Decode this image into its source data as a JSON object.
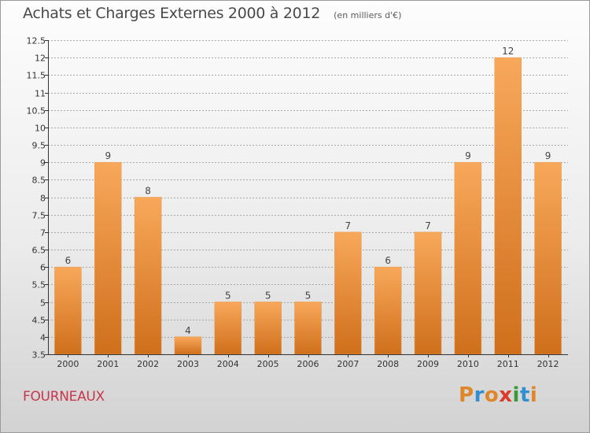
{
  "header": {
    "title": "Achats et Charges Externes 2000 à 2012",
    "unit": "(en milliers d'€)"
  },
  "footer": {
    "commune": "FOURNEAUX",
    "brand_letters": [
      "P",
      "r",
      "o",
      "x",
      "i",
      "t",
      "i"
    ],
    "brand_colors": [
      "#e0862a",
      "#2f8fd0",
      "#e0862a",
      "#d93a2a",
      "#3a9a3a",
      "#2f8fd0",
      "#e0862a"
    ]
  },
  "colors": {
    "bar_top": "#f8a85a",
    "bar_bottom": "#cf6f1c",
    "grid": "#a8a8a8",
    "axis": "#333333"
  },
  "chart_data": {
    "type": "bar",
    "categories": [
      "2000",
      "2001",
      "2002",
      "2003",
      "2004",
      "2005",
      "2006",
      "2007",
      "2008",
      "2009",
      "2010",
      "2011",
      "2012"
    ],
    "values": [
      6,
      9,
      8,
      4,
      5,
      5,
      5,
      7,
      6,
      7,
      9,
      12,
      9
    ],
    "data_labels": [
      "6",
      "9",
      "8",
      "4",
      "5",
      "5",
      "5",
      "7",
      "6",
      "7",
      "9",
      "12",
      "9"
    ],
    "ylim": [
      3.5,
      12.5
    ],
    "yticks": [
      "3.5",
      "4",
      "4.5",
      "5",
      "5.5",
      "6",
      "6.5",
      "7",
      "7.5",
      "8",
      "8.5",
      "9",
      "9.5",
      "10",
      "10.5",
      "11",
      "11.5",
      "12",
      "12.5"
    ],
    "grid": true,
    "legend": "none"
  }
}
